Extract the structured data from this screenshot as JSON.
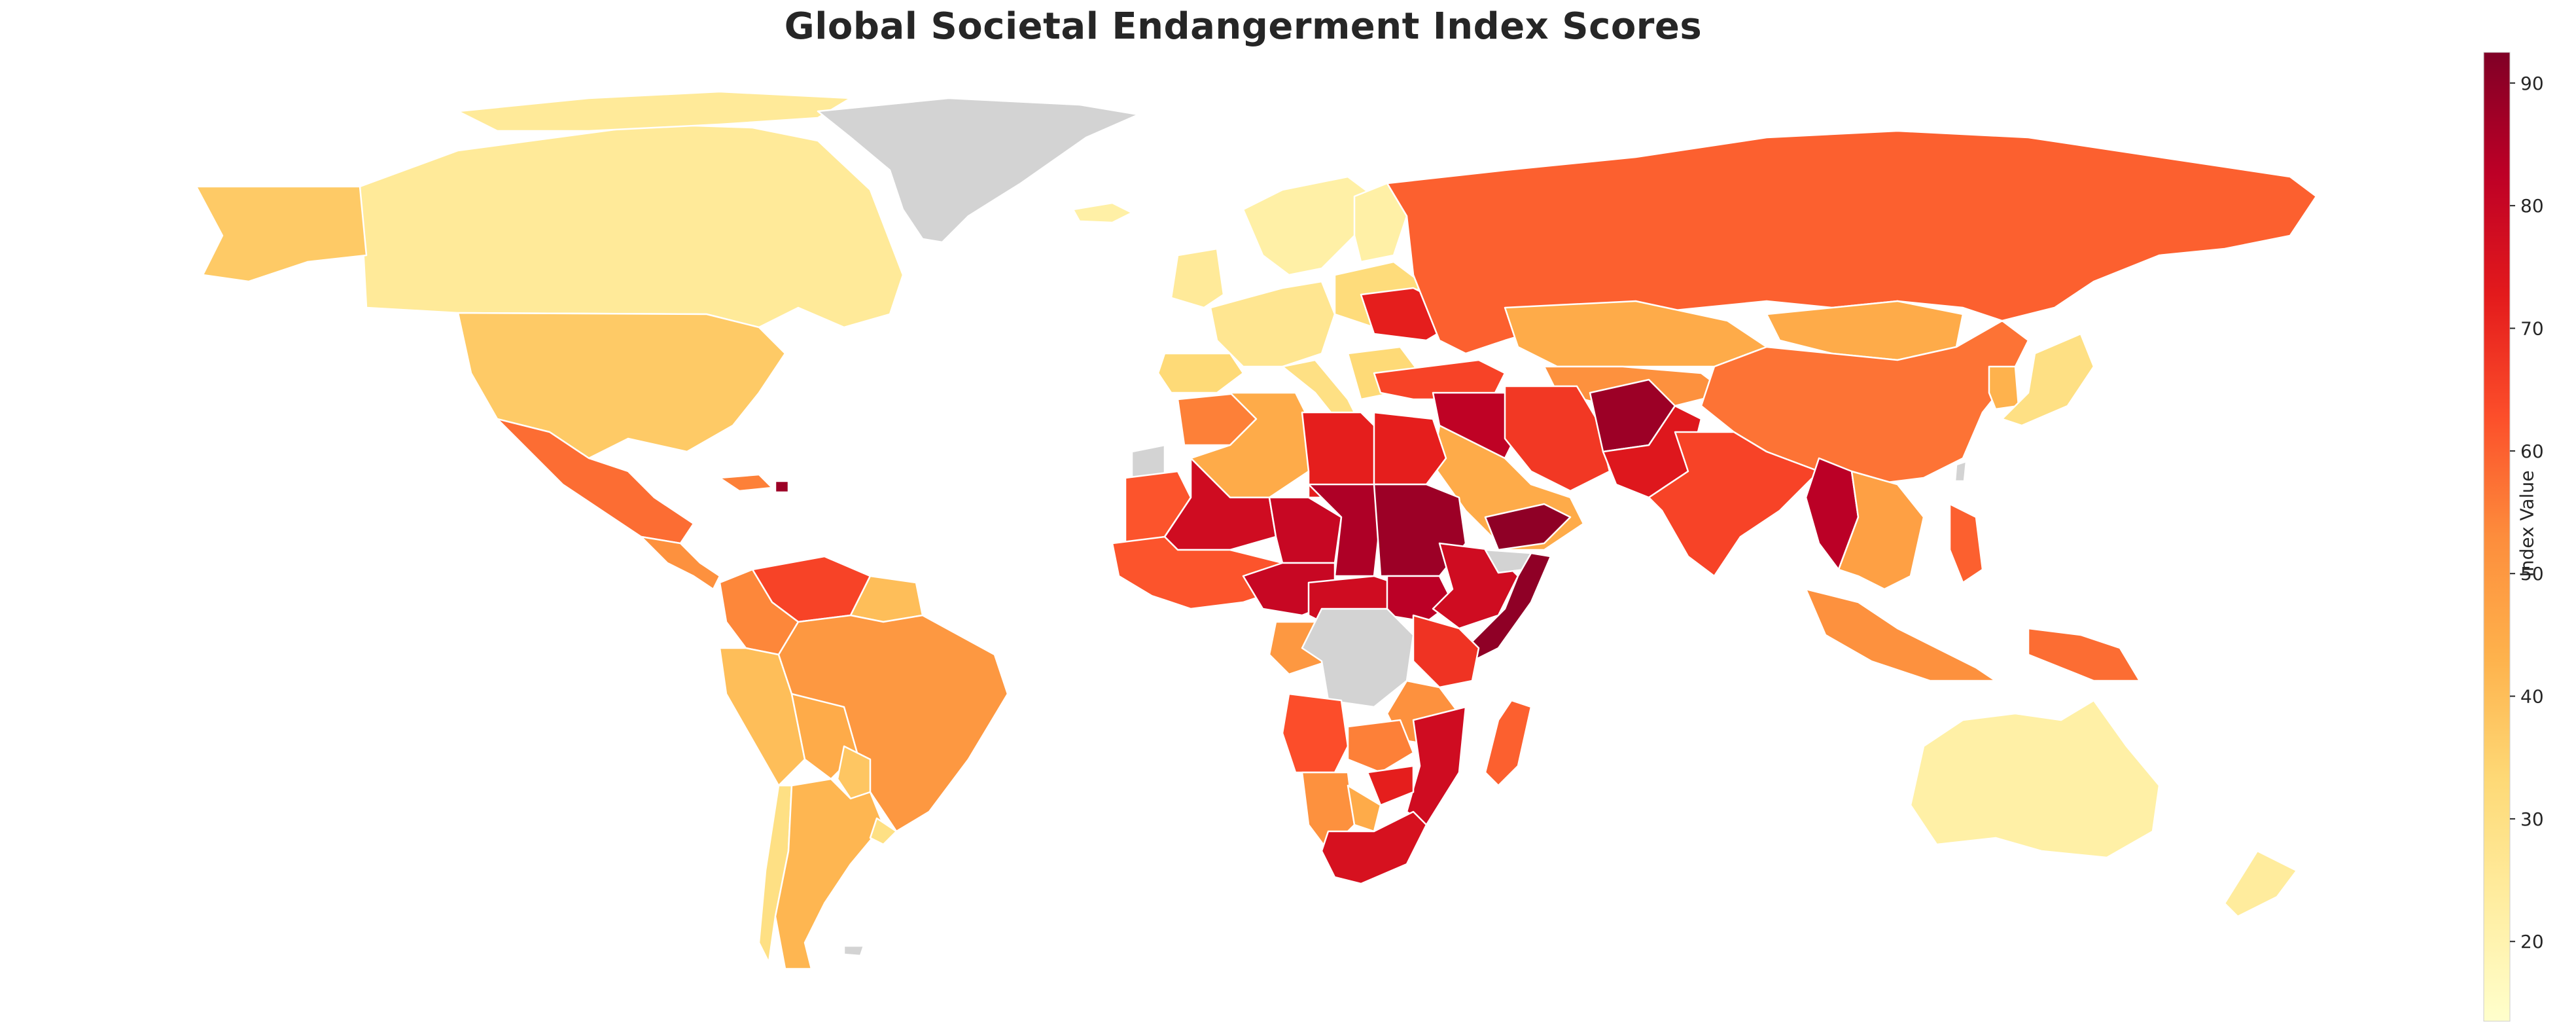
{
  "title": "Global Societal Endangerment Index Scores",
  "colorbar": {
    "label": "Index Value",
    "min": 13.5,
    "max": 92.5,
    "ticks": [
      20,
      30,
      40,
      50,
      60,
      70,
      80,
      90
    ],
    "no_data_color": "#d3d3d3",
    "colormap": "YlOrRd",
    "stops": [
      "#ffffcc",
      "#ffeda0",
      "#fed976",
      "#feb24c",
      "#fd8d3c",
      "#fc4e2a",
      "#e31a1c",
      "#bd0026",
      "#800026"
    ]
  },
  "chart_data": {
    "type": "choropleth",
    "title": "Global Societal Endangerment Index Scores",
    "colorbar_label": "Index Value",
    "value_range": [
      13.5,
      92.5
    ],
    "colorbar_ticks": [
      20,
      30,
      40,
      50,
      60,
      70,
      80,
      90
    ],
    "regions": [
      {
        "id": "canada",
        "value": 25
      },
      {
        "id": "alaska",
        "value": 37
      },
      {
        "id": "usa",
        "value": 37
      },
      {
        "id": "mexico",
        "value": 58
      },
      {
        "id": "central-america",
        "value": 52
      },
      {
        "id": "caribbean-west",
        "value": 55
      },
      {
        "id": "haiti",
        "value": 88
      },
      {
        "id": "venezuela",
        "value": 65
      },
      {
        "id": "colombia",
        "value": 54
      },
      {
        "id": "guianas",
        "value": 40
      },
      {
        "id": "ecuador-peru",
        "value": 40
      },
      {
        "id": "brazil",
        "value": 50
      },
      {
        "id": "bolivia",
        "value": 45
      },
      {
        "id": "paraguay",
        "value": 38
      },
      {
        "id": "chile",
        "value": 30
      },
      {
        "id": "argentina",
        "value": 42
      },
      {
        "id": "uruguay",
        "value": 30
      },
      {
        "id": "greenland",
        "value": null
      },
      {
        "id": "iceland",
        "value": 22
      },
      {
        "id": "norway-sweden",
        "value": 22
      },
      {
        "id": "finland",
        "value": 22
      },
      {
        "id": "uk-ireland",
        "value": 25
      },
      {
        "id": "western-europe",
        "value": 27
      },
      {
        "id": "iberia",
        "value": 33
      },
      {
        "id": "italy",
        "value": 30
      },
      {
        "id": "balkans",
        "value": 33
      },
      {
        "id": "eastern-europe",
        "value": 32
      },
      {
        "id": "ukraine",
        "value": 72
      },
      {
        "id": "russia",
        "value": 60
      },
      {
        "id": "turkey",
        "value": 65
      },
      {
        "id": "kazakhstan",
        "value": 45
      },
      {
        "id": "central-asia",
        "value": 52
      },
      {
        "id": "mongolia",
        "value": 45
      },
      {
        "id": "china",
        "value": 57
      },
      {
        "id": "korea",
        "value": 43
      },
      {
        "id": "japan",
        "value": 30
      },
      {
        "id": "syria-iraq",
        "value": 82
      },
      {
        "id": "iran",
        "value": 67
      },
      {
        "id": "saudi-arabia",
        "value": 45
      },
      {
        "id": "yemen",
        "value": 90
      },
      {
        "id": "afghanistan",
        "value": 88
      },
      {
        "id": "pakistan",
        "value": 74
      },
      {
        "id": "india",
        "value": 65
      },
      {
        "id": "myanmar",
        "value": 83
      },
      {
        "id": "southeast-asia",
        "value": 48
      },
      {
        "id": "philippines",
        "value": 60
      },
      {
        "id": "indonesia",
        "value": 52
      },
      {
        "id": "papua",
        "value": 58
      },
      {
        "id": "australia",
        "value": 22
      },
      {
        "id": "new-zealand",
        "value": 24
      },
      {
        "id": "morocco",
        "value": 55
      },
      {
        "id": "algeria",
        "value": 45
      },
      {
        "id": "libya",
        "value": 72
      },
      {
        "id": "egypt",
        "value": 72
      },
      {
        "id": "western-sahara",
        "value": null
      },
      {
        "id": "mauritania",
        "value": 62
      },
      {
        "id": "mali",
        "value": 78
      },
      {
        "id": "niger",
        "value": 80
      },
      {
        "id": "chad",
        "value": 85
      },
      {
        "id": "sudan",
        "value": 88
      },
      {
        "id": "west-africa",
        "value": 62
      },
      {
        "id": "nigeria",
        "value": 80
      },
      {
        "id": "cameroon-car",
        "value": 78
      },
      {
        "id": "south-sudan",
        "value": 83
      },
      {
        "id": "ethiopia",
        "value": 78
      },
      {
        "id": "somalia",
        "value": 90
      },
      {
        "id": "somaliland",
        "value": null
      },
      {
        "id": "gabon-congo",
        "value": 50
      },
      {
        "id": "dr-congo",
        "value": null
      },
      {
        "id": "uganda-kenya",
        "value": 68
      },
      {
        "id": "tanzania",
        "value": 52
      },
      {
        "id": "angola",
        "value": 63
      },
      {
        "id": "zambia",
        "value": 55
      },
      {
        "id": "mozambique",
        "value": 78
      },
      {
        "id": "zimbabwe",
        "value": 72
      },
      {
        "id": "namibia",
        "value": 52
      },
      {
        "id": "botswana",
        "value": 45
      },
      {
        "id": "south-africa",
        "value": 76
      },
      {
        "id": "madagascar",
        "value": 60
      },
      {
        "id": "falklands",
        "value": null
      },
      {
        "id": "taiwan",
        "value": null
      }
    ]
  }
}
